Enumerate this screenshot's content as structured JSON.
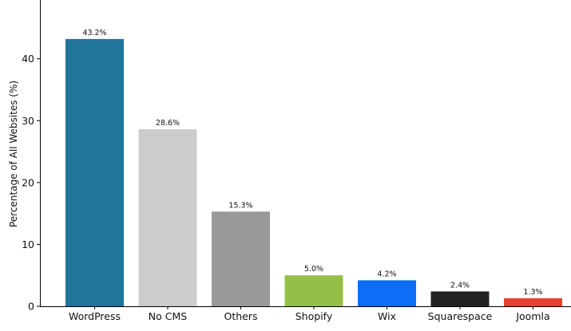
{
  "chart_data": {
    "type": "bar",
    "title": "",
    "xlabel": "",
    "ylabel": "Percentage of All Websites (%)",
    "categories": [
      "WordPress",
      "No CMS",
      "Others",
      "Shopify",
      "Wix",
      "Squarespace",
      "Joomla"
    ],
    "values": [
      43.2,
      28.6,
      15.3,
      5.0,
      4.2,
      2.4,
      1.3
    ],
    "data_labels": [
      "43.2%",
      "28.6%",
      "15.3%",
      "5.0%",
      "4.2%",
      "2.4%",
      "1.3%"
    ],
    "colors": [
      "#21759b",
      "#cccccc",
      "#999999",
      "#96bf48",
      "#0c6ef7",
      "#222222",
      "#e83f31"
    ],
    "ylim": [
      0,
      49.5
    ],
    "yticks": [
      0,
      10,
      20,
      30,
      40
    ],
    "ytick_labels": [
      "0",
      "10",
      "20",
      "30",
      "40"
    ],
    "grid": false,
    "legend": "none"
  }
}
